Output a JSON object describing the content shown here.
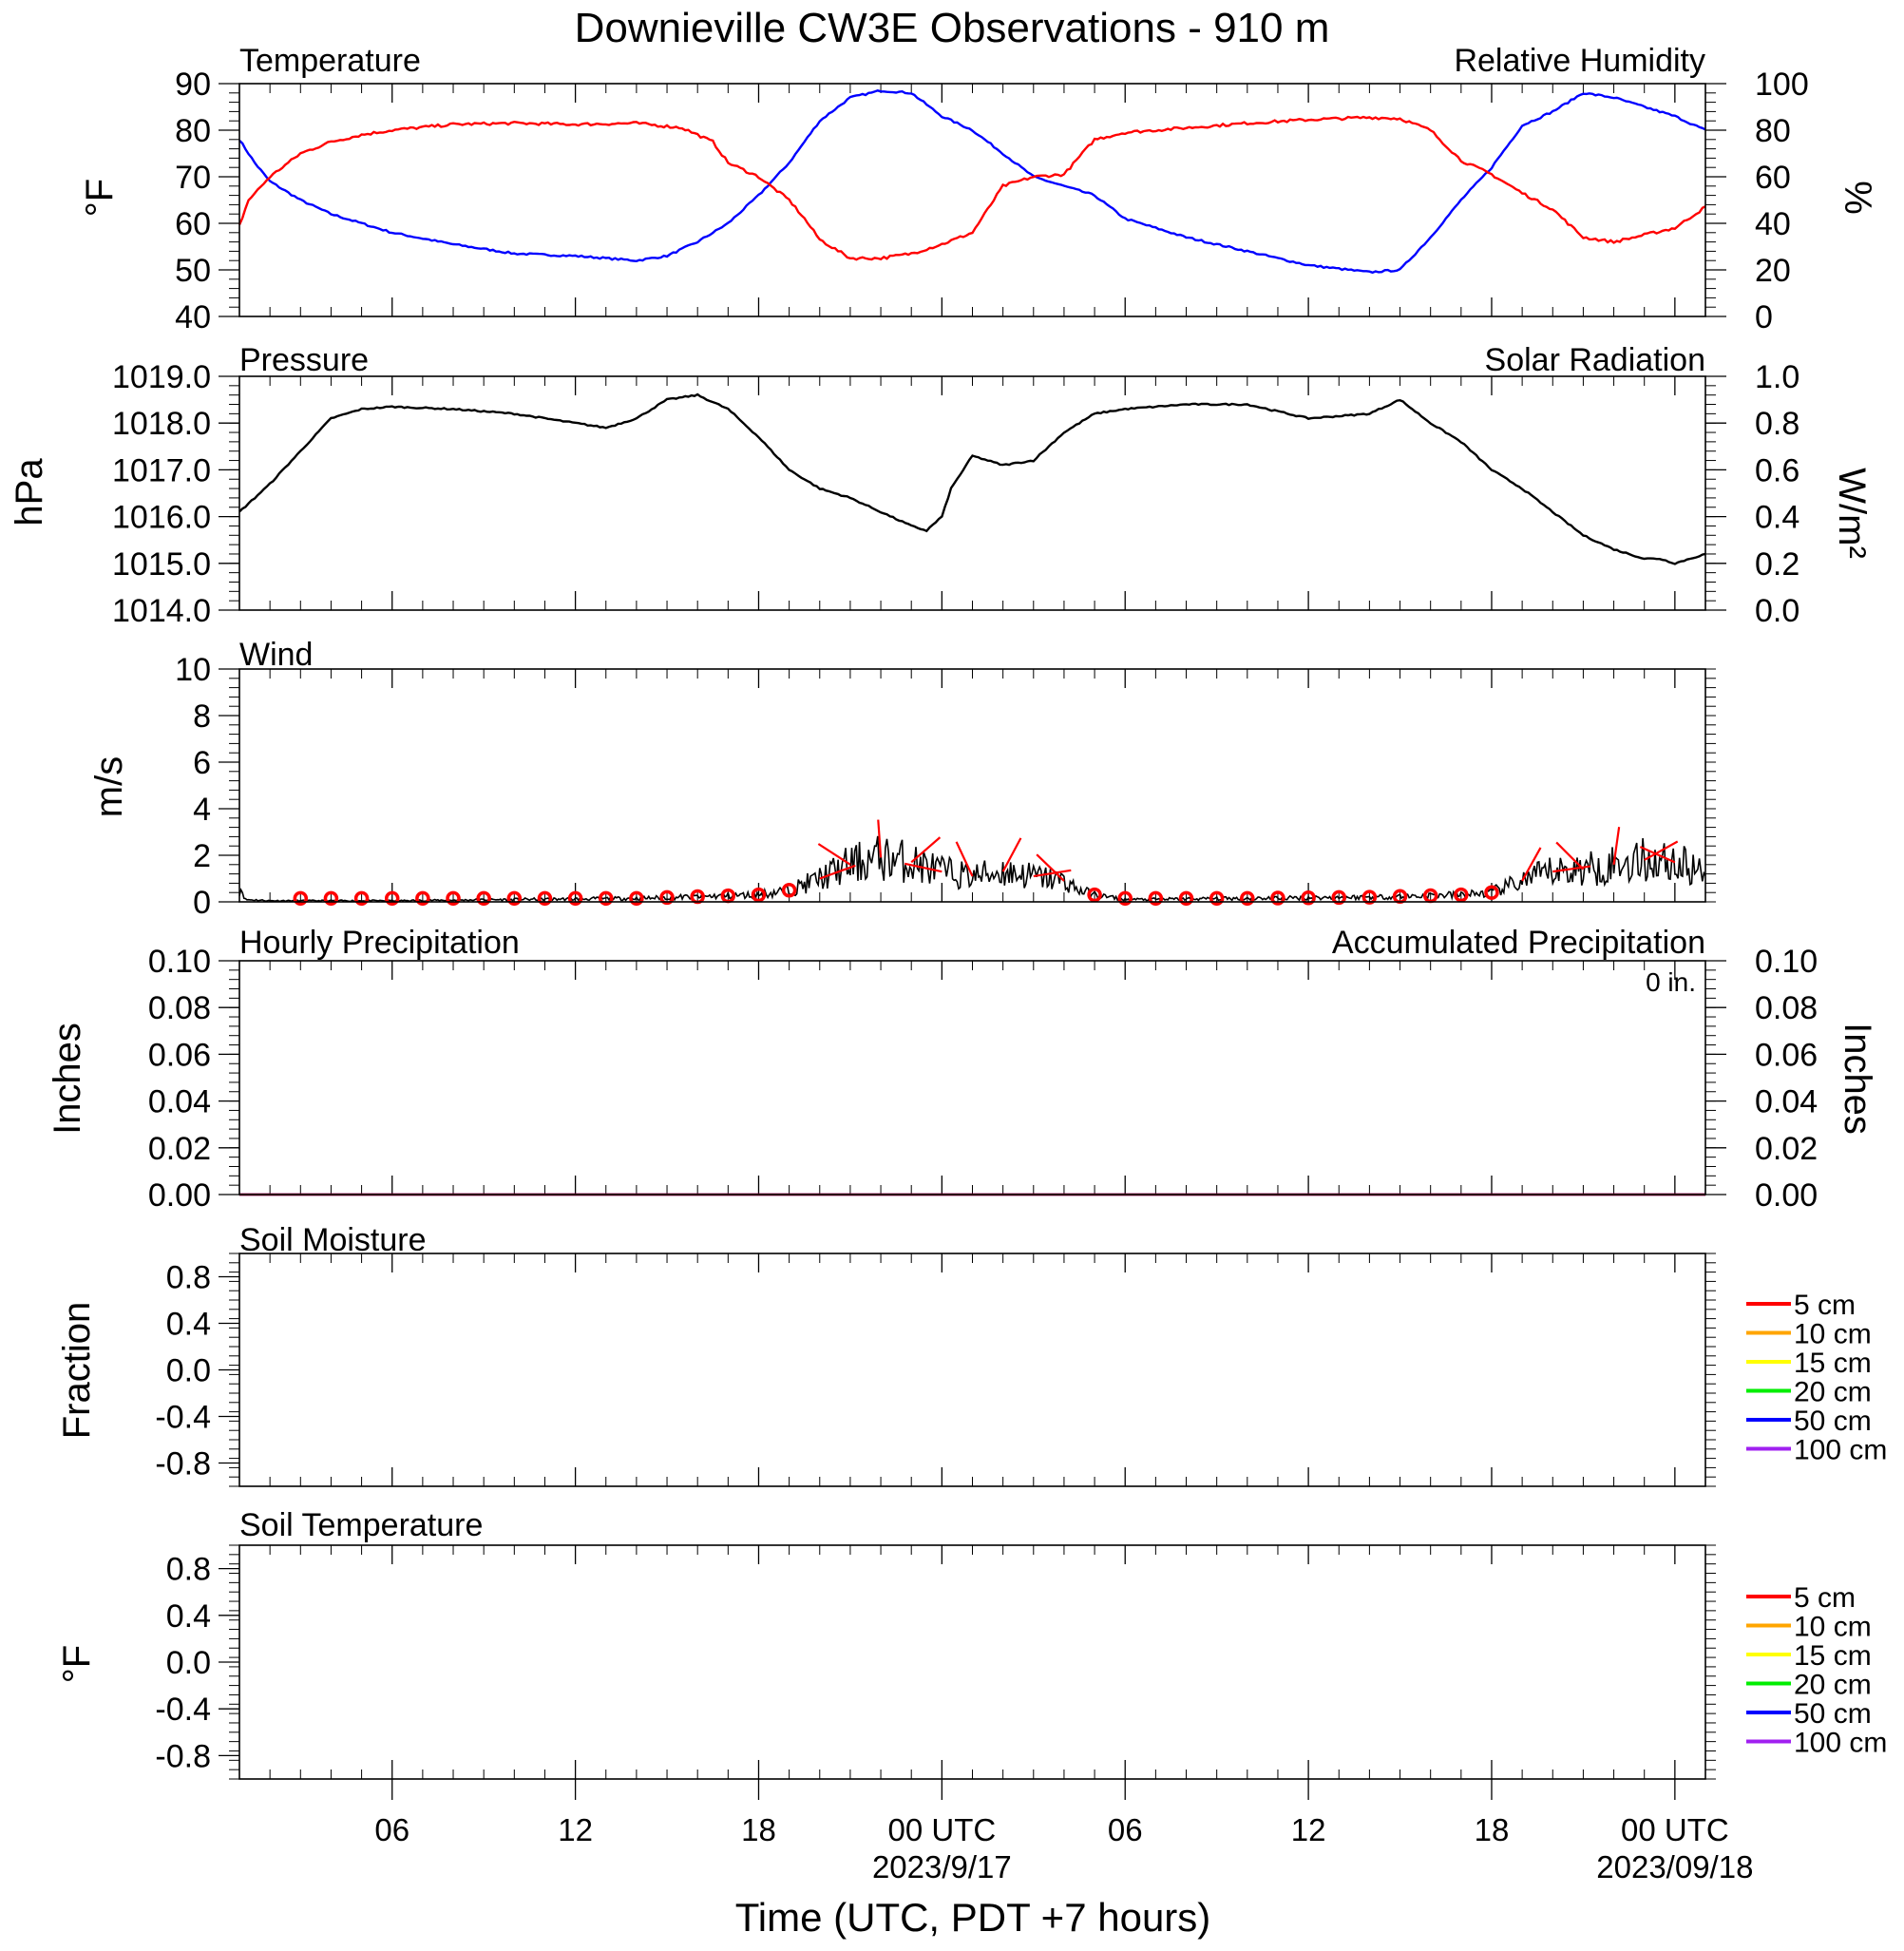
{
  "title": "Downieville CW3E Observations - 910 m",
  "xaxis": {
    "label": "Time (UTC, PDT +7 hours)",
    "ticks": [
      {
        "h": 6,
        "label": "06"
      },
      {
        "h": 12,
        "label": "12"
      },
      {
        "h": 18,
        "label": "18"
      },
      {
        "h": 24,
        "label": "00 UTC",
        "sub": "2023/9/17"
      },
      {
        "h": 30,
        "label": "06"
      },
      {
        "h": 36,
        "label": "12"
      },
      {
        "h": 42,
        "label": "18"
      },
      {
        "h": 48,
        "label": "00 UTC",
        "sub": "2023/09/18"
      }
    ],
    "range_hours_from_2023_09_16_00UTC": [
      1,
      49
    ]
  },
  "colors": {
    "temperature": "#0000ff",
    "humidity": "#ff0000",
    "pressure": "#000000",
    "solar": "#00ee00",
    "wind": "#000000",
    "barbs": "#ff0000",
    "precip_hourly": "#0000ff",
    "precip_accum": "#ff0000"
  },
  "panels": {
    "temp_rh": {
      "left_title": "Temperature",
      "right_title": "Relative Humidity",
      "left_unit": "°F",
      "right_unit": "%",
      "left_ticks": [
        "90",
        "80",
        "70",
        "60",
        "50",
        "40"
      ],
      "right_ticks": [
        "100",
        "80",
        "60",
        "40",
        "20",
        "0"
      ]
    },
    "pressure": {
      "left_title": "Pressure",
      "right_title": "Solar Radiation",
      "left_unit": "hPa",
      "right_unit": "W/m²",
      "left_ticks": [
        "1019.0",
        "1018.0",
        "1017.0",
        "1016.0",
        "1015.0",
        "1014.0"
      ],
      "right_ticks": [
        "1.0",
        "0.8",
        "0.6",
        "0.4",
        "0.2",
        "0.0"
      ]
    },
    "wind": {
      "left_title": "Wind",
      "left_unit": "m/s",
      "left_ticks": [
        "10",
        "8",
        "6",
        "4",
        "2",
        "0"
      ]
    },
    "precip": {
      "left_title": "Hourly Precipitation",
      "right_title": "Accumulated Precipitation",
      "total": "0 in.",
      "left_unit": "Inches",
      "right_unit": "Inches",
      "left_ticks": [
        "0.10",
        "0.08",
        "0.06",
        "0.04",
        "0.02",
        "0.00"
      ],
      "right_ticks": [
        "0.10",
        "0.08",
        "0.06",
        "0.04",
        "0.02",
        "0.00"
      ]
    },
    "soil_moisture": {
      "left_title": "Soil Moisture",
      "left_unit": "Fraction",
      "left_ticks": [
        "0.8",
        "0.4",
        "0.0",
        "-0.4",
        "-0.8"
      ],
      "legend": [
        "5 cm",
        "10 cm",
        "15 cm",
        "20 cm",
        "50 cm",
        "100 cm"
      ]
    },
    "soil_temp": {
      "left_title": "Soil Temperature",
      "left_unit": "°F",
      "left_ticks": [
        "0.8",
        "0.4",
        "0.0",
        "-0.4",
        "-0.8"
      ],
      "legend": [
        "5 cm",
        "10 cm",
        "15 cm",
        "20 cm",
        "50 cm",
        "100 cm"
      ]
    }
  },
  "legend_colors": [
    "#ff0000",
    "#ffa500",
    "#ffff00",
    "#00ee00",
    "#0000ff",
    "#a020f0"
  ],
  "chart_data": [
    {
      "type": "line",
      "title": "Temperature / Relative Humidity",
      "x_unit": "hours since 2023-09-16 00 UTC",
      "series": [
        {
          "name": "Temperature",
          "axis": "left",
          "ylim": [
            40,
            90
          ],
          "x": [
            1,
            1.5,
            2,
            3,
            4,
            5,
            6,
            8,
            10,
            12,
            13,
            14,
            15,
            16,
            17,
            18,
            19,
            20,
            21,
            22,
            23,
            24,
            25,
            26,
            27,
            28,
            29,
            30,
            32,
            34,
            36,
            38,
            39,
            40,
            41,
            42,
            43,
            44,
            45,
            46,
            47,
            48,
            49
          ],
          "y": [
            78,
            73,
            69,
            65,
            62,
            60,
            58,
            55.5,
            53.5,
            53,
            52.5,
            52,
            53,
            56,
            60,
            66,
            73,
            82,
            87,
            88.5,
            88,
            83,
            80,
            75,
            70,
            68,
            66,
            61,
            57,
            54,
            51,
            49.5,
            50,
            57,
            65,
            72,
            81,
            84,
            88,
            87,
            85,
            83,
            80
          ]
        },
        {
          "name": "Relative Humidity",
          "axis": "right",
          "ylim": [
            0,
            100
          ],
          "x": [
            1,
            1.3,
            2,
            3,
            4,
            5,
            6,
            8,
            10,
            12,
            14,
            15.5,
            16.5,
            17,
            18,
            19,
            19.5,
            20,
            21,
            22,
            23,
            24,
            25,
            26,
            27,
            28,
            29,
            30,
            32,
            34,
            36,
            38,
            39,
            40,
            41,
            42,
            43,
            44,
            45,
            45.5,
            46,
            47,
            48,
            49
          ],
          "y": [
            39,
            50,
            60,
            70,
            75,
            78,
            80,
            82.5,
            83,
            82.5,
            83,
            81,
            75,
            66,
            60,
            50,
            42,
            33,
            25,
            25,
            27,
            31,
            36,
            56,
            60,
            61,
            76,
            79,
            81,
            83,
            84.5,
            85.5,
            85,
            80,
            67,
            61,
            53,
            46,
            34,
            33,
            32,
            35,
            38,
            47
          ]
        }
      ]
    },
    {
      "type": "line",
      "title": "Pressure",
      "ylim": [
        1014,
        1019
      ],
      "series": [
        {
          "name": "Pressure",
          "x": [
            1,
            2,
            3,
            4,
            5,
            6,
            8,
            10,
            12,
            13,
            14,
            15,
            16,
            17,
            18,
            19,
            20,
            21,
            22,
            23,
            23.5,
            24,
            24.3,
            25,
            26,
            27,
            28,
            29,
            30,
            32,
            34,
            36,
            38,
            39,
            40,
            41,
            42,
            43,
            44,
            45,
            46,
            47,
            47.5,
            48,
            48.5,
            49
          ],
          "y": [
            1016.1,
            1016.7,
            1017.4,
            1018.1,
            1018.3,
            1018.35,
            1018.3,
            1018.2,
            1018.0,
            1017.9,
            1018.1,
            1018.5,
            1018.6,
            1018.3,
            1017.7,
            1017.0,
            1016.6,
            1016.4,
            1016.1,
            1015.8,
            1015.7,
            1016.0,
            1016.6,
            1017.3,
            1017.1,
            1017.2,
            1017.8,
            1018.2,
            1018.3,
            1018.4,
            1018.4,
            1018.1,
            1018.2,
            1018.5,
            1018.0,
            1017.6,
            1017.0,
            1016.6,
            1016.1,
            1015.6,
            1015.3,
            1015.1,
            1015.1,
            1015.0,
            1015.1,
            1015.2
          ]
        }
      ]
    },
    {
      "type": "line",
      "title": "Wind",
      "ylim": [
        0,
        10
      ],
      "series": [
        {
          "name": "Wind",
          "x": [
            1,
            1.1,
            1.2,
            2,
            6,
            10,
            14,
            18,
            19,
            20,
            21,
            22,
            23,
            24,
            25,
            26,
            27,
            28,
            28.5,
            29,
            29.5,
            30,
            34,
            38,
            41,
            42,
            43,
            44,
            45,
            46,
            47,
            48,
            49
          ],
          "y": [
            0.6,
            0.5,
            0.1,
            0.05,
            0.05,
            0.1,
            0.15,
            0.3,
            0.5,
            1.0,
            1.6,
            1.9,
            1.7,
            1.3,
            1.1,
            1.3,
            1.1,
            0.9,
            0.5,
            0.3,
            0.2,
            0.1,
            0.15,
            0.2,
            0.3,
            0.4,
            0.9,
            1.3,
            1.4,
            1.6,
            1.8,
            1.7,
            1.2
          ]
        }
      ]
    },
    {
      "type": "line",
      "title": "Precipitation",
      "ylim": [
        0,
        0.1
      ],
      "series": [
        {
          "name": "Hourly Precipitation",
          "x": [
            1,
            49
          ],
          "y": [
            0,
            0
          ]
        },
        {
          "name": "Accumulated Precipitation",
          "x": [
            1,
            49
          ],
          "y": [
            0,
            0
          ]
        }
      ]
    },
    {
      "type": "line",
      "title": "Soil Moisture",
      "ylim": [
        -1,
        1
      ],
      "series": []
    },
    {
      "type": "line",
      "title": "Soil Temperature",
      "ylim": [
        -1,
        1
      ],
      "series": []
    }
  ]
}
